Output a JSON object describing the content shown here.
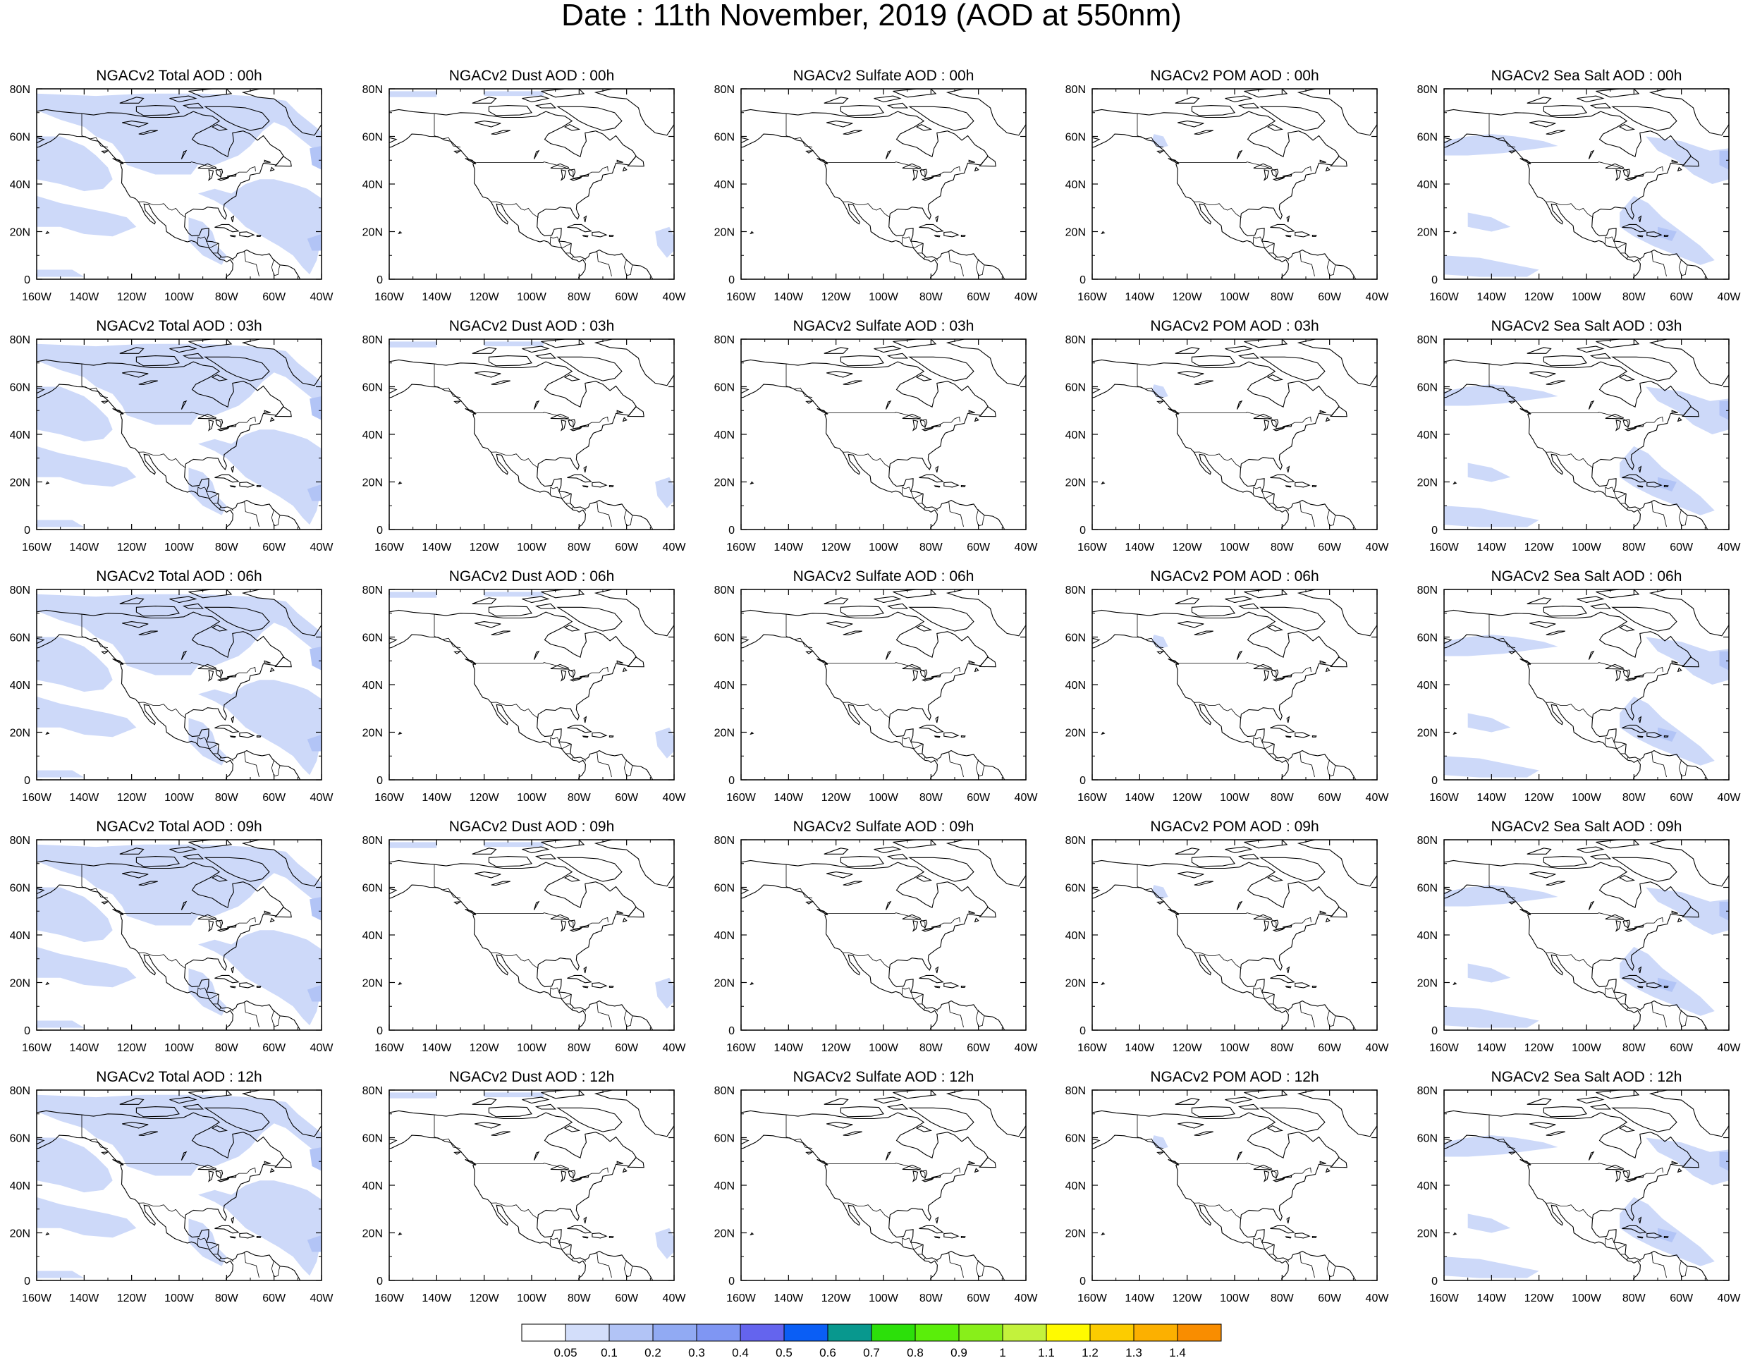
{
  "title": "Date : 11th November, 2019 (AOD at 550nm)",
  "panel_titles": [
    [
      "NGACv2 Total AOD : 00h",
      "NGACv2 Dust AOD : 00h",
      "NGACv2 Sulfate AOD : 00h",
      "NGACv2 POM AOD : 00h",
      "NGACv2 Sea Salt AOD : 00h"
    ],
    [
      "NGACv2 Total AOD : 03h",
      "NGACv2 Dust AOD : 03h",
      "NGACv2 Sulfate AOD : 03h",
      "NGACv2 POM AOD : 03h",
      "NGACv2 Sea Salt AOD : 03h"
    ],
    [
      "NGACv2 Total AOD : 06h",
      "NGACv2 Dust AOD : 06h",
      "NGACv2 Sulfate AOD : 06h",
      "NGACv2 POM AOD : 06h",
      "NGACv2 Sea Salt AOD : 06h"
    ],
    [
      "NGACv2 Total AOD : 09h",
      "NGACv2 Dust AOD : 09h",
      "NGACv2 Sulfate AOD : 09h",
      "NGACv2 POM AOD : 09h",
      "NGACv2 Sea Salt  AOD : 09h"
    ],
    [
      "NGACv2 Total AOD  : 12h",
      "NGACv2 Dust AOD : 12h",
      "NGACv2 Sulfate AOD : 12h",
      "NGACv2 POM  AOD : 12h",
      "NGACv2 Sea Salt  AOD : 12h"
    ]
  ],
  "lat_ticks": [
    "80N",
    "60N",
    "40N",
    "20N",
    "0"
  ],
  "lon_ticks": [
    "160W",
    "140W",
    "120W",
    "100W",
    "80W",
    "60W",
    "40W"
  ],
  "colorbar": {
    "labels": [
      "0.05",
      "0.1",
      "0.2",
      "0.3",
      "0.4",
      "0.5",
      "0.6",
      "0.7",
      "0.8",
      "0.9",
      "1",
      "1.1",
      "1.2",
      "1.3",
      "1.4"
    ],
    "colors": [
      "#ffffff",
      "#d3defa",
      "#b2c4f6",
      "#91aaf3",
      "#7f96f3",
      "#6464ee",
      "#0a5ef5",
      "#08988e",
      "#2ce00a",
      "#5aee0a",
      "#88ef1a",
      "#c3f23c",
      "#fffa00",
      "#fccc00",
      "#fcb000",
      "#f98d00",
      "#f36f00",
      "#f5250a"
    ]
  },
  "shading": {
    "total": "#cdd9f9",
    "dust": "#cdd9f9",
    "seasalt": "#cdd9f9",
    "darker": "#b2c4f6"
  }
}
